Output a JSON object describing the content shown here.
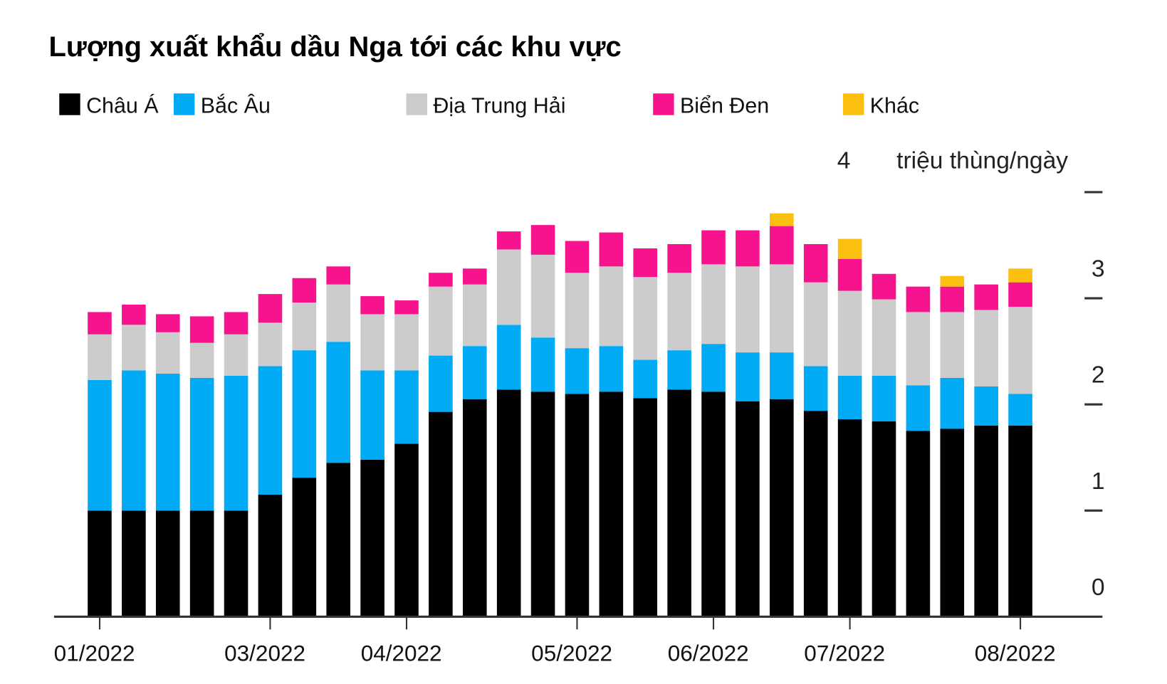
{
  "chart_data": {
    "type": "bar",
    "stacked": true,
    "title": "Lượng xuất khẩu dầu Nga tới các khu vực",
    "ylabel": "triệu thùng/ngày",
    "ylim": [
      0,
      4
    ],
    "yticks": [
      "0",
      "1",
      "2",
      "3",
      "4"
    ],
    "grid": false,
    "legend_position": "top",
    "x_tick_labels": [
      {
        "bar": 0,
        "label": "01/2022"
      },
      {
        "bar": 5,
        "label": "03/2022"
      },
      {
        "bar": 9,
        "label": "04/2022"
      },
      {
        "bar": 14,
        "label": "05/2022"
      },
      {
        "bar": 18,
        "label": "06/2022"
      },
      {
        "bar": 22,
        "label": "07/2022"
      },
      {
        "bar": 27,
        "label": "08/2022"
      }
    ],
    "series": [
      {
        "name": "Châu Á",
        "color": "#000000",
        "values": [
          1.0,
          1.0,
          1.0,
          1.0,
          1.0,
          1.15,
          1.31,
          1.45,
          1.48,
          1.63,
          1.93,
          2.05,
          2.14,
          2.12,
          2.1,
          2.12,
          2.06,
          2.14,
          2.12,
          2.03,
          2.05,
          1.94,
          1.86,
          1.84,
          1.75,
          1.77,
          1.8,
          1.8
        ]
      },
      {
        "name": "Bắc Âu",
        "color": "#00aaf5",
        "values": [
          1.23,
          1.32,
          1.29,
          1.25,
          1.27,
          1.21,
          1.2,
          1.14,
          0.84,
          0.69,
          0.53,
          0.5,
          0.61,
          0.51,
          0.43,
          0.43,
          0.36,
          0.37,
          0.45,
          0.46,
          0.44,
          0.42,
          0.41,
          0.43,
          0.43,
          0.48,
          0.37,
          0.3
        ]
      },
      {
        "name": "Địa Trung Hải",
        "color": "#cccccc",
        "values": [
          0.43,
          0.43,
          0.39,
          0.33,
          0.39,
          0.41,
          0.45,
          0.54,
          0.53,
          0.53,
          0.65,
          0.58,
          0.71,
          0.78,
          0.71,
          0.75,
          0.78,
          0.73,
          0.75,
          0.81,
          0.83,
          0.79,
          0.8,
          0.72,
          0.69,
          0.62,
          0.72,
          0.82
        ]
      },
      {
        "name": "Biển Đen",
        "color": "#f7138d",
        "values": [
          0.21,
          0.19,
          0.17,
          0.25,
          0.21,
          0.27,
          0.23,
          0.17,
          0.17,
          0.13,
          0.13,
          0.15,
          0.17,
          0.28,
          0.3,
          0.32,
          0.27,
          0.27,
          0.32,
          0.34,
          0.36,
          0.36,
          0.3,
          0.24,
          0.24,
          0.24,
          0.24,
          0.23
        ]
      },
      {
        "name": "Khác",
        "color": "#fbbf0f",
        "values": [
          0,
          0,
          0,
          0,
          0,
          0,
          0,
          0,
          0,
          0,
          0,
          0,
          0,
          0,
          0,
          0,
          0,
          0,
          0,
          0,
          0.12,
          0,
          0.19,
          0,
          0,
          0.1,
          0,
          0.13
        ]
      }
    ]
  }
}
